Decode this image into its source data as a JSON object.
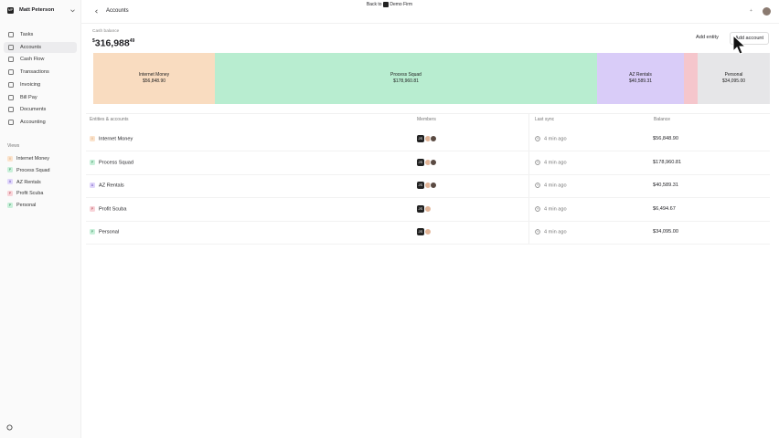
{
  "banner": {
    "prefix": "Back to",
    "firm": "Demo Firm"
  },
  "sidebar": {
    "user": {
      "initials": "MP",
      "name": "Matt Peterson"
    },
    "nav": [
      "Tasks",
      "Accounts",
      "Cash Flow",
      "Transactions",
      "Invoicing",
      "Bill Pay",
      "Documents",
      "Accounting"
    ],
    "views_title": "Views",
    "views": [
      {
        "initial": "I",
        "label": "Internet Money"
      },
      {
        "initial": "P",
        "label": "Process Squad"
      },
      {
        "initial": "A",
        "label": "AZ Rentals"
      },
      {
        "initial": "P",
        "label": "Profit Scuba"
      },
      {
        "initial": "P",
        "label": "Personal"
      }
    ]
  },
  "header": {
    "title": "Accounts"
  },
  "summary": {
    "label": "Cash balance",
    "currency": "$",
    "whole": "316,988",
    "cents": "49"
  },
  "actions": [
    "Add entity",
    "Add account"
  ],
  "treemap": [
    {
      "label": "Internet Money",
      "amount": "$56,848.90"
    },
    {
      "label": "Process Squad",
      "amount": "$178,960.81"
    },
    {
      "label": "AZ Rentals",
      "amount": "$40,589.31"
    },
    {
      "label": "Personal",
      "amount": "$34,095.00"
    }
  ],
  "table": {
    "columns": [
      "Entities & accounts",
      "Members",
      "Last sync",
      "Balance"
    ],
    "rows": [
      {
        "initial": "I",
        "name": "Internet Money",
        "members": "JS",
        "last_sync": "4 min ago",
        "balance": "$56,848.90"
      },
      {
        "initial": "P",
        "name": "Process Squad",
        "members": "JS",
        "last_sync": "4 min ago",
        "balance": "$178,960.81"
      },
      {
        "initial": "A",
        "name": "AZ Rentals",
        "members": "JS",
        "last_sync": "4 min ago",
        "balance": "$40,589.31"
      },
      {
        "initial": "P",
        "name": "Profit Scuba",
        "members": "JS",
        "last_sync": "4 min ago",
        "balance": "$6,494.67"
      },
      {
        "initial": "P",
        "name": "Personal",
        "members": "JS",
        "last_sync": "4 min ago",
        "balance": "$34,095.00"
      }
    ]
  }
}
